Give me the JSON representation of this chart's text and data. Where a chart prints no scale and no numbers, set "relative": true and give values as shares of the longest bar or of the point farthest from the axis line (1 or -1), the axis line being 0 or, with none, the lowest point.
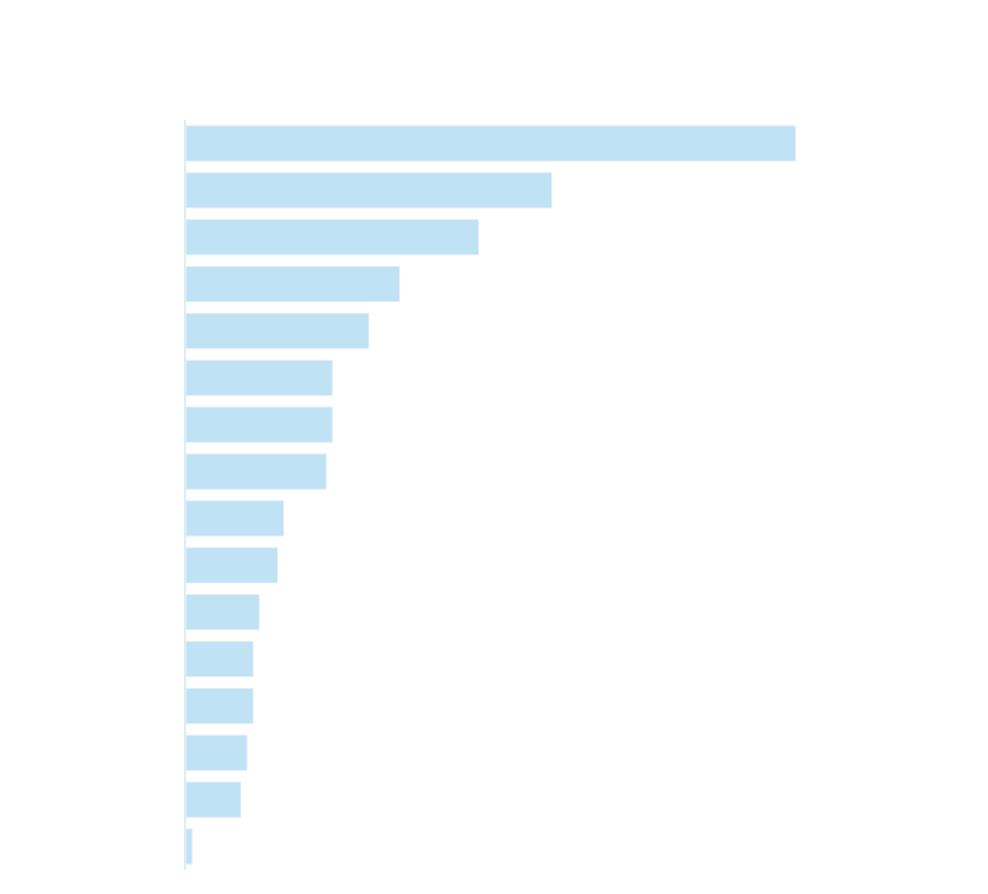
{
  "chart_data": {
    "type": "bar",
    "orientation": "horizontal",
    "relative": true,
    "color": "#bfe3f5",
    "categories": [
      null,
      null,
      null,
      null,
      null,
      null,
      null,
      null,
      null,
      null,
      null,
      null,
      null,
      null,
      null,
      null
    ],
    "values": [
      1,
      0.6,
      0.48,
      0.35,
      0.3,
      0.24,
      0.24,
      0.23,
      0.16,
      0.15,
      0.12,
      0.11,
      0.11,
      0.1,
      0.09,
      0.01
    ]
  }
}
